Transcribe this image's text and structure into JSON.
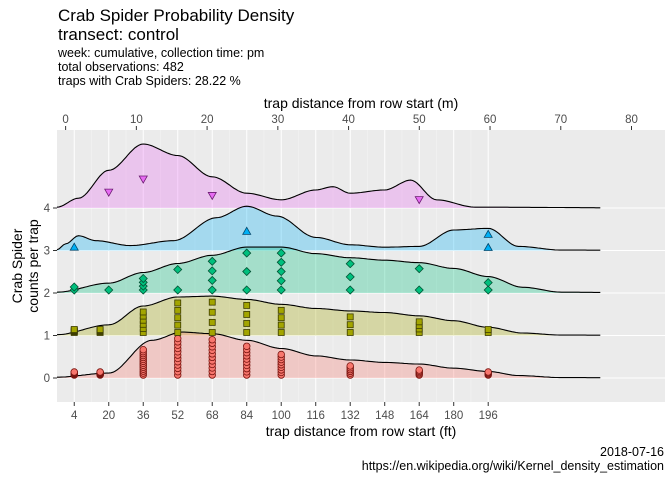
{
  "header": {
    "title": "Crab Spider Probability Density",
    "subtitle": "transect: control",
    "info_lines": [
      "week: cumulative, collection time: pm",
      "total observations: 482",
      "traps with Crab Spiders: 28.22 %"
    ]
  },
  "footer": {
    "date": "2018-07-16",
    "url": "https://en.wikipedia.org/wiki/Kernel_density_estimation"
  },
  "chart_data": {
    "type": "ridgeline",
    "xlabel": "trap distance from row start (ft)",
    "x2label": "trap distance from row start (m)",
    "ylabel": [
      "Crab Spider",
      "counts per trap"
    ],
    "x_ticks_ft": [
      4,
      20,
      36,
      52,
      68,
      84,
      100,
      116,
      132,
      148,
      164,
      180,
      196
    ],
    "x_ticks_m": [
      0,
      10,
      20,
      30,
      40,
      50,
      60,
      70,
      80
    ],
    "y_ticks": [
      0,
      1,
      2,
      3,
      4
    ],
    "xlim_ft": [
      -4,
      278
    ],
    "grid": true,
    "series": [
      {
        "name": "0",
        "fill": "#f8766d",
        "marker": "circle",
        "points_x_ft": [
          4,
          16,
          36,
          52,
          68,
          84,
          100,
          132,
          164,
          196
        ],
        "points_n": [
          12,
          14,
          14,
          12,
          11,
          10,
          9,
          6,
          5,
          4
        ],
        "density": [
          [
            -4,
            0.01
          ],
          [
            20,
            0.06
          ],
          [
            40,
            0.46
          ],
          [
            54,
            0.56
          ],
          [
            68,
            0.54
          ],
          [
            84,
            0.46
          ],
          [
            100,
            0.36
          ],
          [
            116,
            0.27
          ],
          [
            132,
            0.22
          ],
          [
            148,
            0.19
          ],
          [
            164,
            0.17
          ],
          [
            180,
            0.12
          ],
          [
            196,
            0.08
          ],
          [
            210,
            0.03
          ],
          [
            230,
            0.005
          ],
          [
            278,
            0.0
          ]
        ]
      },
      {
        "name": "1",
        "fill": "#a3a500",
        "marker": "square",
        "points_x_ft": [
          4,
          16,
          36,
          52,
          68,
          84,
          100,
          132,
          164,
          196
        ],
        "points_n": [
          6,
          5,
          6,
          5,
          4,
          4,
          4,
          3,
          4,
          2
        ],
        "density": [
          [
            -4,
            0.01
          ],
          [
            20,
            0.13
          ],
          [
            36,
            0.36
          ],
          [
            52,
            0.47
          ],
          [
            68,
            0.48
          ],
          [
            84,
            0.44
          ],
          [
            100,
            0.38
          ],
          [
            116,
            0.33
          ],
          [
            132,
            0.3
          ],
          [
            148,
            0.28
          ],
          [
            164,
            0.24
          ],
          [
            180,
            0.18
          ],
          [
            196,
            0.1
          ],
          [
            212,
            0.03
          ],
          [
            230,
            0.005
          ],
          [
            278,
            0.0
          ]
        ]
      },
      {
        "name": "2",
        "fill": "#00bf7d",
        "marker": "diamond",
        "points_x_ft": [
          4,
          20,
          36,
          52,
          68,
          84,
          100,
          132,
          164,
          196
        ],
        "points_n": [
          2,
          1,
          4,
          2,
          4,
          3,
          5,
          3,
          2,
          2
        ],
        "density": [
          [
            -4,
            0.01
          ],
          [
            20,
            0.12
          ],
          [
            36,
            0.25
          ],
          [
            52,
            0.36
          ],
          [
            68,
            0.46
          ],
          [
            84,
            0.56
          ],
          [
            100,
            0.56
          ],
          [
            116,
            0.48
          ],
          [
            132,
            0.43
          ],
          [
            148,
            0.4
          ],
          [
            164,
            0.37
          ],
          [
            180,
            0.3
          ],
          [
            196,
            0.2
          ],
          [
            212,
            0.07
          ],
          [
            230,
            0.01
          ],
          [
            278,
            0.0
          ]
        ]
      },
      {
        "name": "3",
        "fill": "#00b0f6",
        "marker": "triangle-up",
        "points_x_ft": [
          4,
          84,
          196
        ],
        "points_n": [
          1,
          1,
          2
        ],
        "density": [
          [
            -4,
            0.01
          ],
          [
            0,
            0.08
          ],
          [
            6,
            0.18
          ],
          [
            14,
            0.12
          ],
          [
            30,
            0.06
          ],
          [
            50,
            0.12
          ],
          [
            70,
            0.4
          ],
          [
            84,
            0.54
          ],
          [
            98,
            0.42
          ],
          [
            116,
            0.16
          ],
          [
            132,
            0.07
          ],
          [
            148,
            0.04
          ],
          [
            164,
            0.05
          ],
          [
            180,
            0.25
          ],
          [
            196,
            0.27
          ],
          [
            210,
            0.05
          ],
          [
            230,
            0.005
          ],
          [
            278,
            0.0
          ]
        ]
      },
      {
        "name": "4",
        "fill": "#e76bf3",
        "marker": "triangle-down",
        "points_x_ft": [
          20,
          36,
          68,
          164
        ],
        "points_n": [
          1,
          1,
          1,
          1
        ],
        "density": [
          [
            -4,
            0.01
          ],
          [
            6,
            0.12
          ],
          [
            20,
            0.46
          ],
          [
            36,
            0.78
          ],
          [
            52,
            0.64
          ],
          [
            68,
            0.38
          ],
          [
            84,
            0.18
          ],
          [
            100,
            0.1
          ],
          [
            116,
            0.22
          ],
          [
            124,
            0.26
          ],
          [
            132,
            0.18
          ],
          [
            148,
            0.22
          ],
          [
            160,
            0.34
          ],
          [
            172,
            0.1
          ],
          [
            190,
            0.01
          ],
          [
            278,
            0.0
          ]
        ]
      }
    ]
  }
}
